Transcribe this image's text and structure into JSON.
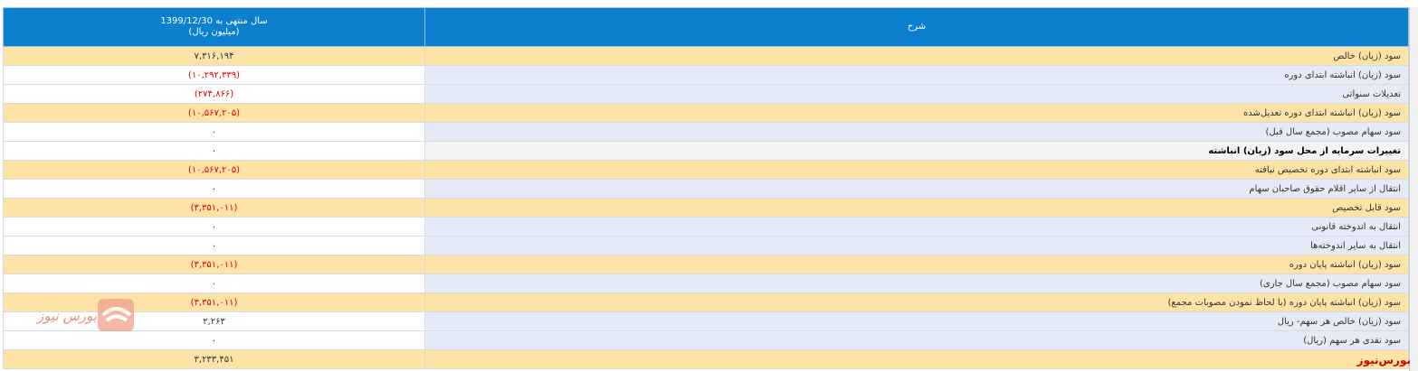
{
  "header": {
    "value_column": "سال منتهی به 1399/12/30",
    "value_unit": "(میلیون ریال)",
    "description_column": "شرح"
  },
  "rows": [
    {
      "description": "سود (زیان) خالص",
      "value": "۷,۳۱۶,۱۹۴",
      "highlight": true
    },
    {
      "description": "سود (زیان) انباشته ابتدای دوره",
      "value": "(۱۰,۲۹۲,۳۳۹)",
      "highlight": false
    },
    {
      "description": "تعدیلات سنواتی",
      "value": "(۲۷۴,۸۶۶)",
      "highlight": false
    },
    {
      "description": "سود (زیان) انباشته ابتدای دوره تعدیل‌شده",
      "value": "(۱۰,۵۶۷,۲۰۵)",
      "highlight": true
    },
    {
      "description": "سود سهام مصوب (مجمع سال قبل)",
      "value": "۰",
      "highlight": false
    },
    {
      "description": "تغییرات سرمایه از محل سود (زیان) انباشته",
      "value": "۰",
      "highlight": false,
      "emphasis": true
    },
    {
      "description": "سود انباشته ابتدای دوره تخصیص نیافته",
      "value": "(۱۰,۵۶۷,۲۰۵)",
      "highlight": true
    },
    {
      "description": "انتقال از سایر اقلام حقوق صاحبان سهام",
      "value": "۰",
      "highlight": false
    },
    {
      "description": "سود قابل تخصیص",
      "value": "(۳,۳۵۱,۰۱۱)",
      "highlight": true
    },
    {
      "description": "انتقال به اندوخته قانونی",
      "value": "۰",
      "highlight": false
    },
    {
      "description": "انتقال به سایر اندوخته‌ها",
      "value": "۰",
      "highlight": false
    },
    {
      "description": "سود (زیان) انباشته پایان دوره",
      "value": "(۳,۳۵۱,۰۱۱)",
      "highlight": true
    },
    {
      "description": "سود سهام مصوب (مجمع سال جاری)",
      "value": "۰",
      "highlight": false
    },
    {
      "description": "سود (زیان) انباشته پایان دوره (با لحاظ نمودن مصوبات مجمع)",
      "value": "(۳,۳۵۱,۰۱۱)",
      "highlight": true
    },
    {
      "description": "سود (زیان) خالص هر سهم- ریال",
      "value": "۲,۲۶۳",
      "highlight": false
    },
    {
      "description": "سود نقدی هر سهم (ریال)",
      "value": "۰",
      "highlight": false
    },
    {
      "value": "۳,۲۳۳,۴۵۱",
      "highlight": true
    }
  ],
  "watermark": "بورس نیوز",
  "footer_credit": "بورس‌نیوز"
}
